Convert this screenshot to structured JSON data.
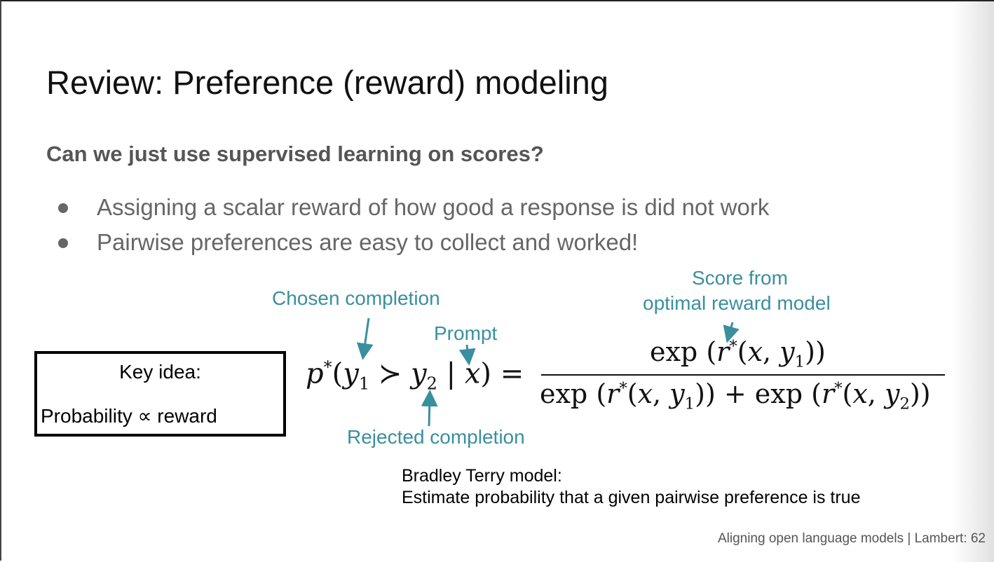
{
  "slide": {
    "title": "Review: Preference (reward) modeling",
    "subtitle": "Can we just use supervised learning on scores?",
    "bullets": [
      "Assigning a scalar reward of how good a response is did not work",
      "Pairwise preferences are easy to collect and worked!"
    ],
    "key_box": {
      "title": "Key idea:",
      "body": "Probability ∝ reward"
    },
    "annotations": {
      "chosen": "Chosen completion",
      "prompt": "Prompt",
      "rejected": "Rejected completion",
      "score_line1": "Score from",
      "score_line2": "optimal reward model"
    },
    "bradley_terry": {
      "line1": "Bradley Terry model:",
      "line2": "Estimate probability that a given pairwise preference is true"
    },
    "footer": "Aligning open language models | Lambert: 62",
    "colors": {
      "annotation": "#3a8f9e",
      "title": "#111111",
      "subtitle": "#555555",
      "bullet": "#666666"
    }
  }
}
